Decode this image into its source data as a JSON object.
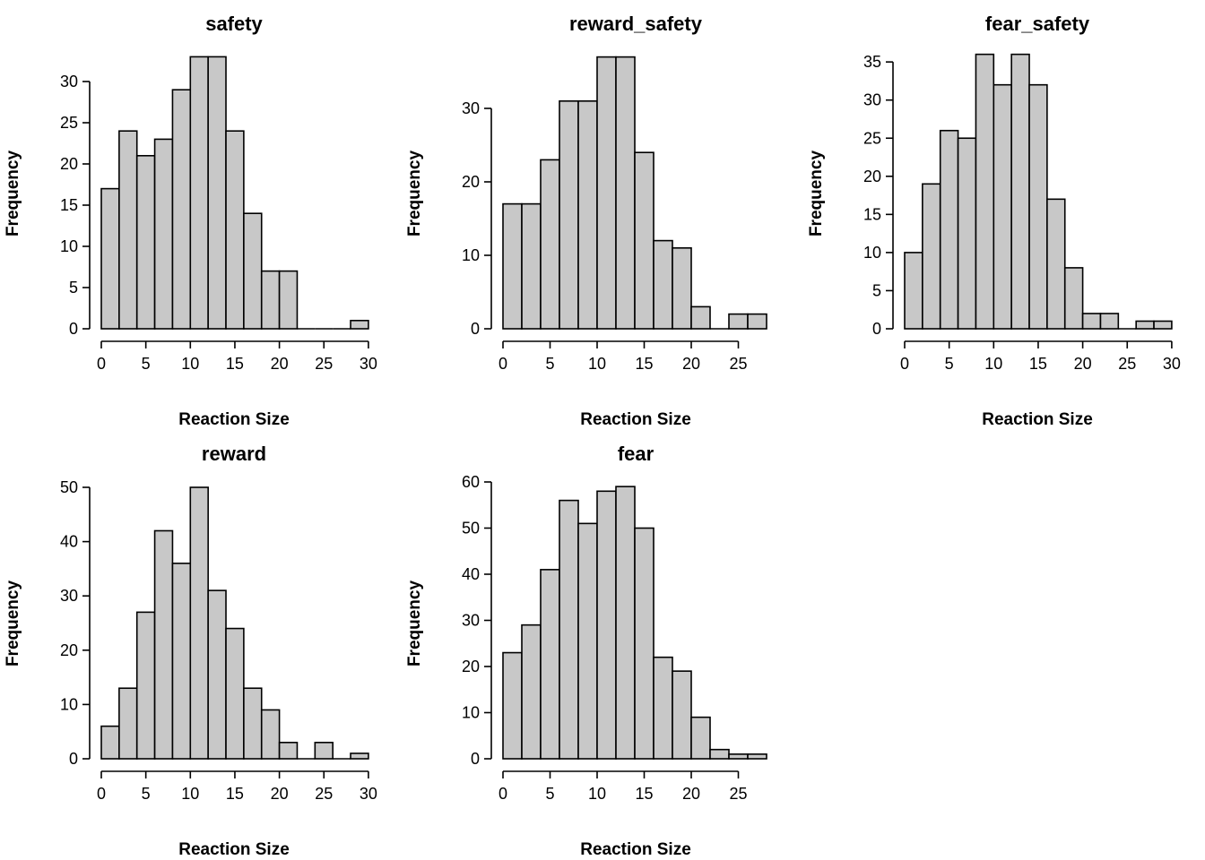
{
  "chart_data": [
    {
      "type": "bar",
      "title": "safety",
      "xlabel": "Reaction Size",
      "ylabel": "Frequency",
      "bin_width": 2,
      "bin_start": 0,
      "values": [
        17,
        24,
        21,
        23,
        29,
        33,
        33,
        24,
        14,
        7,
        7,
        0,
        0,
        0,
        1
      ],
      "xticks": [
        0,
        5,
        10,
        15,
        20,
        25,
        30
      ],
      "yticks": [
        0,
        5,
        10,
        15,
        20,
        25,
        30
      ],
      "xlim": [
        0,
        30
      ],
      "ylim": [
        0,
        33
      ]
    },
    {
      "type": "bar",
      "title": "reward_safety",
      "xlabel": "Reaction Size",
      "ylabel": "Frequency",
      "bin_width": 2,
      "bin_start": 0,
      "values": [
        17,
        17,
        23,
        31,
        31,
        37,
        37,
        24,
        12,
        11,
        3,
        0,
        2,
        2
      ],
      "xticks": [
        0,
        5,
        10,
        15,
        20,
        25
      ],
      "yticks": [
        0,
        10,
        20,
        30
      ],
      "xlim": [
        0,
        28
      ],
      "ylim": [
        0,
        37
      ]
    },
    {
      "type": "bar",
      "title": "fear_safety",
      "xlabel": "Reaction Size",
      "ylabel": "Frequency",
      "bin_width": 2,
      "bin_start": 0,
      "values": [
        10,
        19,
        26,
        25,
        36,
        32,
        36,
        32,
        17,
        8,
        2,
        2,
        0,
        1,
        1
      ],
      "xticks": [
        0,
        5,
        10,
        15,
        20,
        25,
        30
      ],
      "yticks": [
        0,
        5,
        10,
        15,
        20,
        25,
        30,
        35
      ],
      "xlim": [
        0,
        30
      ],
      "ylim": [
        0,
        36
      ]
    },
    {
      "type": "bar",
      "title": "reward",
      "xlabel": "Reaction Size",
      "ylabel": "Frequency",
      "bin_width": 2,
      "bin_start": 0,
      "values": [
        6,
        13,
        27,
        42,
        36,
        50,
        31,
        24,
        13,
        9,
        3,
        0,
        3,
        0,
        1
      ],
      "xticks": [
        0,
        5,
        10,
        15,
        20,
        25,
        30
      ],
      "yticks": [
        0,
        10,
        20,
        30,
        40,
        50
      ],
      "xlim": [
        0,
        30
      ],
      "ylim": [
        0,
        50
      ]
    },
    {
      "type": "bar",
      "title": "fear",
      "xlabel": "Reaction Size",
      "ylabel": "Frequency",
      "bin_width": 2,
      "bin_start": 0,
      "values": [
        23,
        29,
        41,
        56,
        51,
        58,
        59,
        50,
        22,
        19,
        9,
        2,
        1,
        1
      ],
      "xticks": [
        0,
        5,
        10,
        15,
        20,
        25
      ],
      "yticks": [
        0,
        10,
        20,
        30,
        40,
        50,
        60
      ],
      "xlim": [
        0,
        28
      ],
      "ylim": [
        0,
        60
      ]
    }
  ],
  "colors": {
    "bar_fill": "#c8c8c8",
    "bar_stroke": "#000000",
    "background": "#ffffff"
  }
}
